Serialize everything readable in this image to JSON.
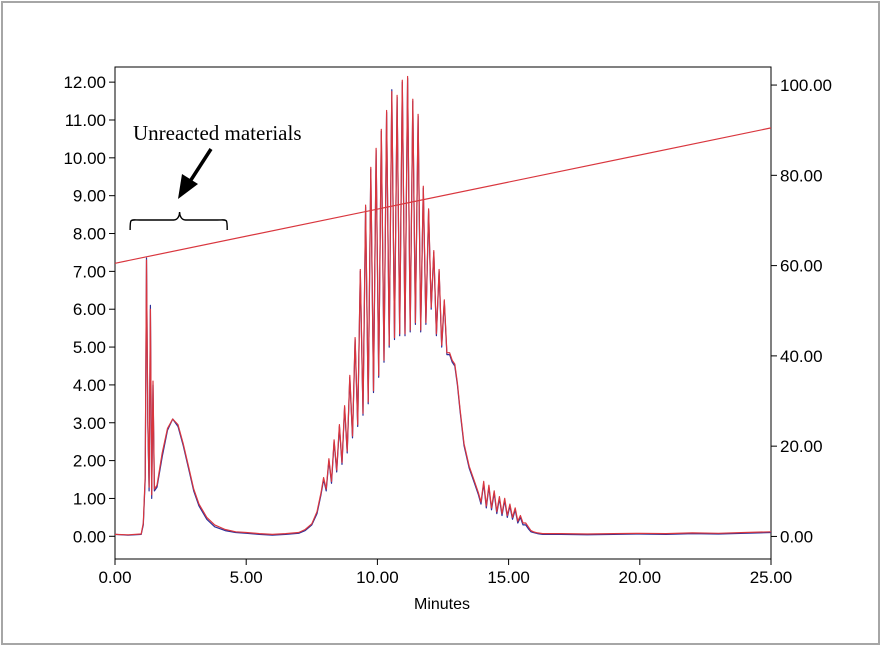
{
  "chart_data": {
    "type": "line",
    "title": "",
    "xlabel": "Minutes",
    "ylabel": "",
    "y2label": "",
    "xlim": [
      0,
      25
    ],
    "ylim": [
      -0.6,
      12.4
    ],
    "y2lim": [
      -5,
      104
    ],
    "x_ticks": [
      "0.00",
      "5.00",
      "10.00",
      "15.00",
      "20.00",
      "25.00"
    ],
    "y_ticks": [
      "0.00",
      "1.00",
      "2.00",
      "3.00",
      "4.00",
      "5.00",
      "6.00",
      "7.00",
      "8.00",
      "9.00",
      "10.00",
      "11.00",
      "12.00"
    ],
    "y2_ticks": [
      "0.00",
      "20.00",
      "40.00",
      "60.00",
      "80.00",
      "100.00"
    ],
    "grid": false,
    "annotation": {
      "text": "Unreacted materials",
      "bracket_x_range": [
        0.5,
        4.2
      ],
      "arrow_to_x": 2.5
    },
    "series": [
      {
        "color": "#2b2f9a",
        "axis": "left",
        "x": [
          0.0,
          0.5,
          1.0,
          1.08,
          1.15,
          1.2,
          1.25,
          1.3,
          1.35,
          1.4,
          1.45,
          1.5,
          1.6,
          1.8,
          2.0,
          2.2,
          2.4,
          2.6,
          2.8,
          3.0,
          3.2,
          3.5,
          3.8,
          4.2,
          4.6,
          5.0,
          5.5,
          6.0,
          6.5,
          7.0,
          7.25,
          7.5,
          7.7,
          7.85,
          7.95,
          8.05,
          8.15,
          8.25,
          8.35,
          8.45,
          8.55,
          8.65,
          8.75,
          8.85,
          8.95,
          9.05,
          9.15,
          9.25,
          9.35,
          9.45,
          9.55,
          9.65,
          9.75,
          9.85,
          9.95,
          10.05,
          10.15,
          10.25,
          10.35,
          10.45,
          10.55,
          10.65,
          10.75,
          10.85,
          10.95,
          11.05,
          11.15,
          11.25,
          11.35,
          11.45,
          11.55,
          11.65,
          11.75,
          11.85,
          11.95,
          12.05,
          12.15,
          12.25,
          12.35,
          12.45,
          12.55,
          12.65,
          12.75,
          12.85,
          12.95,
          13.05,
          13.15,
          13.3,
          13.5,
          13.7,
          13.85,
          13.95,
          14.05,
          14.15,
          14.25,
          14.35,
          14.45,
          14.55,
          14.65,
          14.75,
          14.85,
          14.95,
          15.05,
          15.15,
          15.25,
          15.35,
          15.45,
          15.55,
          15.65,
          15.75,
          15.85,
          15.95,
          16.1,
          16.3,
          16.5,
          17.0,
          18.0,
          19.0,
          20.0,
          21.0,
          22.0,
          23.0,
          24.0,
          25.0
        ],
        "y": [
          0.05,
          0.03,
          0.05,
          0.3,
          1.5,
          7.35,
          3.0,
          1.2,
          6.1,
          1.0,
          4.0,
          1.2,
          1.3,
          2.1,
          2.8,
          3.1,
          2.9,
          2.4,
          1.8,
          1.2,
          0.8,
          0.45,
          0.25,
          0.15,
          0.1,
          0.08,
          0.05,
          0.03,
          0.05,
          0.08,
          0.15,
          0.3,
          0.6,
          1.1,
          1.5,
          1.2,
          2.0,
          1.4,
          2.5,
          1.7,
          2.9,
          1.9,
          3.4,
          2.2,
          4.2,
          2.6,
          5.2,
          2.9,
          7.0,
          3.2,
          8.7,
          3.5,
          9.7,
          3.8,
          10.2,
          4.2,
          10.7,
          4.6,
          11.2,
          5.0,
          11.8,
          5.2,
          11.6,
          5.3,
          12.0,
          5.3,
          12.1,
          5.4,
          11.5,
          5.6,
          11.1,
          5.4,
          9.2,
          5.6,
          8.6,
          6.0,
          7.5,
          5.3,
          7.0,
          5.0,
          6.2,
          4.8,
          4.8,
          4.6,
          4.5,
          4.0,
          3.3,
          2.4,
          1.8,
          1.4,
          1.1,
          0.85,
          1.4,
          0.75,
          1.3,
          0.7,
          1.15,
          0.6,
          1.0,
          0.55,
          0.95,
          0.5,
          0.8,
          0.45,
          0.7,
          0.35,
          0.5,
          0.3,
          0.3,
          0.2,
          0.12,
          0.1,
          0.07,
          0.05,
          0.05,
          0.05,
          0.04,
          0.05,
          0.06,
          0.05,
          0.07,
          0.06,
          0.08,
          0.1
        ]
      },
      {
        "color": "#d9363e",
        "axis": "left",
        "x": [
          0.0,
          0.5,
          1.0,
          1.08,
          1.15,
          1.2,
          1.25,
          1.3,
          1.35,
          1.4,
          1.45,
          1.5,
          1.6,
          1.8,
          2.0,
          2.2,
          2.4,
          2.6,
          2.8,
          3.0,
          3.2,
          3.5,
          3.8,
          4.2,
          4.6,
          5.0,
          5.5,
          6.0,
          6.5,
          7.0,
          7.25,
          7.5,
          7.7,
          7.85,
          7.95,
          8.05,
          8.15,
          8.25,
          8.35,
          8.45,
          8.55,
          8.65,
          8.75,
          8.85,
          8.95,
          9.05,
          9.15,
          9.25,
          9.35,
          9.45,
          9.55,
          9.65,
          9.75,
          9.85,
          9.95,
          10.05,
          10.15,
          10.25,
          10.35,
          10.45,
          10.55,
          10.65,
          10.75,
          10.85,
          10.95,
          11.05,
          11.15,
          11.25,
          11.35,
          11.45,
          11.55,
          11.65,
          11.75,
          11.85,
          11.95,
          12.05,
          12.15,
          12.25,
          12.35,
          12.45,
          12.55,
          12.65,
          12.75,
          12.85,
          12.95,
          13.05,
          13.15,
          13.3,
          13.5,
          13.7,
          13.85,
          13.95,
          14.05,
          14.15,
          14.25,
          14.35,
          14.45,
          14.55,
          14.65,
          14.75,
          14.85,
          14.95,
          15.05,
          15.15,
          15.25,
          15.35,
          15.45,
          15.55,
          15.65,
          15.75,
          15.85,
          15.95,
          16.1,
          16.3,
          16.5,
          17.0,
          18.0,
          19.0,
          20.0,
          21.0,
          22.0,
          23.0,
          24.0,
          25.0
        ],
        "y": [
          0.05,
          0.04,
          0.06,
          0.35,
          1.6,
          7.3,
          3.1,
          1.3,
          6.0,
          1.1,
          4.1,
          1.25,
          1.35,
          2.2,
          2.85,
          3.1,
          2.95,
          2.45,
          1.85,
          1.25,
          0.85,
          0.5,
          0.3,
          0.18,
          0.12,
          0.1,
          0.07,
          0.05,
          0.07,
          0.1,
          0.18,
          0.33,
          0.65,
          1.15,
          1.55,
          1.25,
          2.05,
          1.45,
          2.55,
          1.75,
          2.95,
          1.95,
          3.45,
          2.25,
          4.25,
          2.65,
          5.25,
          2.95,
          7.05,
          3.25,
          8.75,
          3.55,
          9.75,
          3.85,
          10.25,
          4.25,
          10.75,
          4.65,
          11.25,
          5.05,
          11.75,
          5.25,
          11.65,
          5.35,
          12.05,
          5.35,
          12.15,
          5.45,
          11.55,
          5.65,
          11.15,
          5.45,
          9.25,
          5.65,
          8.65,
          6.05,
          7.55,
          5.35,
          7.05,
          5.05,
          6.25,
          4.85,
          4.85,
          4.65,
          4.55,
          4.05,
          3.35,
          2.45,
          1.85,
          1.45,
          1.15,
          0.9,
          1.45,
          0.8,
          1.35,
          0.75,
          1.2,
          0.65,
          1.05,
          0.6,
          1.0,
          0.55,
          0.85,
          0.5,
          0.75,
          0.4,
          0.55,
          0.35,
          0.35,
          0.25,
          0.15,
          0.12,
          0.09,
          0.07,
          0.07,
          0.07,
          0.06,
          0.07,
          0.08,
          0.07,
          0.09,
          0.08,
          0.1,
          0.12
        ]
      },
      {
        "color": "#d9363e",
        "axis": "right",
        "x": [
          0,
          25
        ],
        "y": [
          60.5,
          90.5
        ]
      }
    ]
  }
}
